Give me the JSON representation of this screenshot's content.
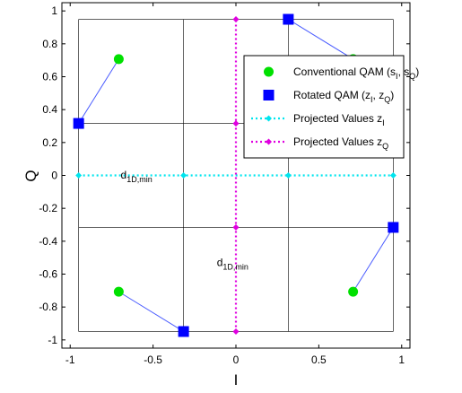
{
  "chart_data": {
    "type": "scatter",
    "xlabel": "I",
    "ylabel": "Q",
    "xlim": [
      -1.05,
      1.05
    ],
    "ylim": [
      -1.05,
      1.05
    ],
    "xticks": [
      -1,
      -0.5,
      0,
      0.5,
      1
    ],
    "xtick_labels": [
      "-1",
      "-0.5",
      "0",
      "0.5",
      "1"
    ],
    "yticks": [
      -1,
      -0.8,
      -0.6,
      -0.4,
      -0.2,
      0,
      0.2,
      0.4,
      0.6,
      0.8,
      1
    ],
    "ytick_labels": [
      "-1",
      "-0.8",
      "-0.6",
      "-0.4",
      "-0.2",
      "0",
      "0.2",
      "0.4",
      "0.6",
      "0.8",
      "1"
    ],
    "grid": false,
    "legend_position": "upper-right",
    "series": [
      {
        "name_main": "Conventional QAM (s",
        "name_sub1": "I",
        "name_mid": ", s",
        "name_sub2": "Q",
        "name_end": ")",
        "marker": "circle",
        "color": "#00e000",
        "points": [
          [
            0.707,
            0.707
          ],
          [
            -0.707,
            0.707
          ],
          [
            -0.707,
            -0.707
          ],
          [
            0.707,
            -0.707
          ]
        ]
      },
      {
        "name_main": "Rotated QAM (z",
        "name_sub1": "I",
        "name_mid": ", z",
        "name_sub2": "Q",
        "name_end": ")",
        "marker": "square",
        "color": "#0000ff",
        "points": [
          [
            0.316,
            0.949
          ],
          [
            -0.949,
            0.316
          ],
          [
            -0.316,
            -0.949
          ],
          [
            0.949,
            -0.316
          ]
        ]
      },
      {
        "name_main": "Projected Values z",
        "name_sub1": "I",
        "marker": "diamond",
        "line": "dotted",
        "color": "#00e5ee",
        "points": [
          [
            -0.949,
            0
          ],
          [
            -0.316,
            0
          ],
          [
            0.316,
            0
          ],
          [
            0.949,
            0
          ]
        ]
      },
      {
        "name_main": "Projected Values z",
        "name_sub1": "Q",
        "marker": "diamond",
        "line": "dotted",
        "color": "#e000e0",
        "points": [
          [
            0,
            -0.949
          ],
          [
            0,
            -0.316
          ],
          [
            0,
            0.316
          ],
          [
            0,
            0.949
          ]
        ]
      }
    ],
    "connectors": [
      [
        [
          0.707,
          0.707
        ],
        [
          0.316,
          0.949
        ]
      ],
      [
        [
          -0.707,
          0.707
        ],
        [
          -0.949,
          0.316
        ]
      ],
      [
        [
          -0.707,
          -0.707
        ],
        [
          -0.316,
          -0.949
        ]
      ],
      [
        [
          0.707,
          -0.707
        ],
        [
          0.949,
          -0.316
        ]
      ]
    ],
    "connector_color": "#4a5cff",
    "guide_lines": {
      "x_values": [
        -0.949,
        -0.316,
        0.316,
        0.949
      ],
      "y_values": [
        -0.949,
        -0.316,
        0.316,
        0.949
      ]
    },
    "annotations": [
      {
        "text": "d",
        "sub": "1D,min",
        "x": -0.6,
        "y": -0.02
      },
      {
        "text": "d",
        "sub": "1D,min",
        "x": -0.02,
        "y": -0.55
      }
    ]
  }
}
